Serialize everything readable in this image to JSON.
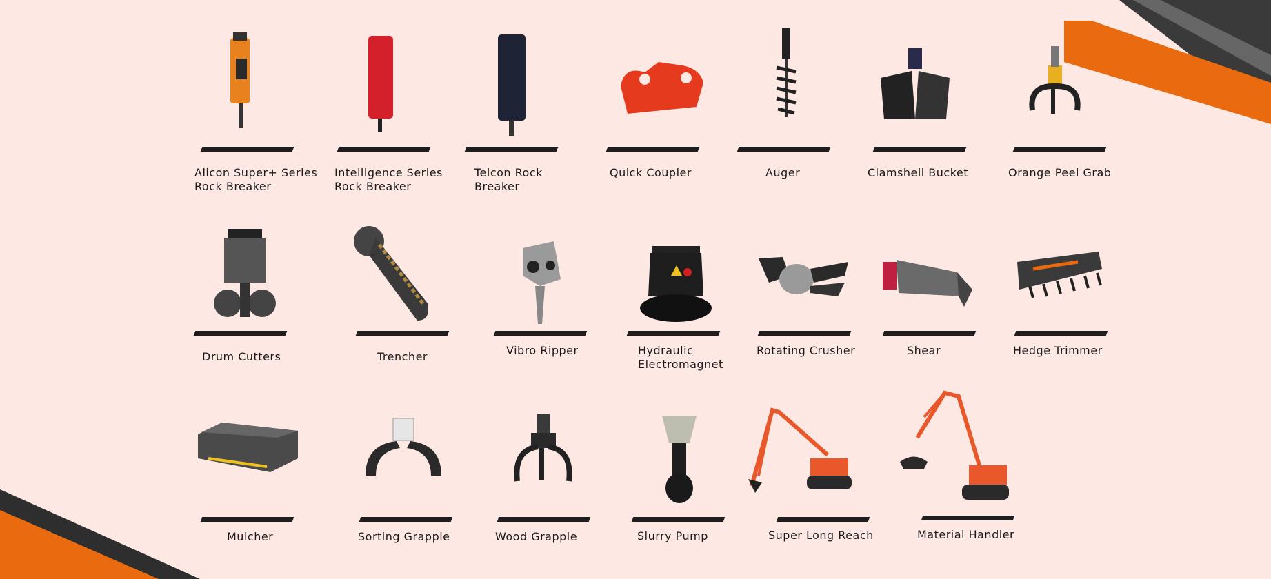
{
  "colors": {
    "background": "#fde8e4",
    "accent": "#ea6a10",
    "dark": "#2e2e2e"
  },
  "rows": [
    {
      "items": [
        {
          "label": "Alicon Super+ Series\nRock Breaker"
        },
        {
          "label": "Intelligence Series\nRock Breaker"
        },
        {
          "label": "Telcon Rock\nBreaker"
        },
        {
          "label": "Quick Coupler"
        },
        {
          "label": "Auger"
        },
        {
          "label": "Clamshell Bucket"
        },
        {
          "label": "Orange Peel Grab"
        }
      ]
    },
    {
      "items": [
        {
          "label": "Drum Cutters"
        },
        {
          "label": "Trencher"
        },
        {
          "label": "Vibro Ripper"
        },
        {
          "label": "Hydraulic\nElectromagnet"
        },
        {
          "label": "Rotating Crusher"
        },
        {
          "label": "Shear"
        },
        {
          "label": "Hedge Trimmer"
        }
      ]
    },
    {
      "items": [
        {
          "label": "Mulcher"
        },
        {
          "label": "Sorting Grapple"
        },
        {
          "label": "Wood Grapple"
        },
        {
          "label": "Slurry Pump"
        },
        {
          "label": "Super Long Reach"
        },
        {
          "label": "Material Handler"
        }
      ]
    }
  ]
}
